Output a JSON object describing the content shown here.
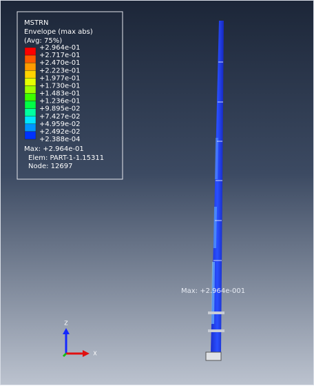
{
  "legend": {
    "title": "MSTRN",
    "subtitle": "Envelope (max abs)",
    "averaging": "(Avg: 75%)",
    "levels": [
      "+2.964e-01",
      "+2.717e-01",
      "+2.470e-01",
      "+2.223e-01",
      "+1.977e-01",
      "+1.730e-01",
      "+1.483e-01",
      "+1.236e-01",
      "+9.895e-02",
      "+7.427e-02",
      "+4.959e-02",
      "+2.492e-02",
      "+2.388e-04"
    ],
    "colors": [
      "#ff0000",
      "#ff5a00",
      "#ff9b00",
      "#ffd200",
      "#e6ff00",
      "#a0ff00",
      "#3cff00",
      "#00ff46",
      "#00ffa0",
      "#00e6ff",
      "#0096ff",
      "#0032ff"
    ],
    "max": "Max: +2.964e-01",
    "elem": "Elem: PART-1-1.15311",
    "node": "Node: 12697"
  },
  "annotation": "Max: +2.964e-001",
  "triad": {
    "z": "Z",
    "x": "X"
  }
}
